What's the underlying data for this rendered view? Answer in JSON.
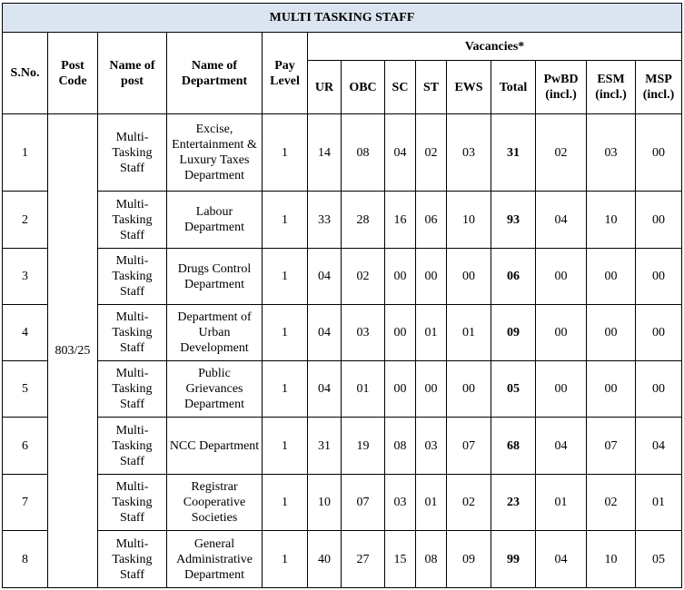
{
  "title": "MULTI TASKING STAFF",
  "headers": {
    "sno": "S.No.",
    "post_code": "Post Code",
    "post": "Name of post",
    "department": "Name of Department",
    "pay_level": "Pay Level",
    "vacancies": "Vacancies*",
    "sub": [
      "UR",
      "OBC",
      "SC",
      "ST",
      "EWS",
      "Total",
      "PwBD (incl.)",
      "ESM (incl.)",
      "MSP (incl.)"
    ]
  },
  "post_code": "803/25",
  "rows": [
    {
      "sno": "1",
      "post": "Multi-Tasking Staff",
      "department": "Excise, Entertainment & Luxury Taxes Department",
      "pay_level": "1",
      "vacancies": [
        "14",
        "08",
        "04",
        "02",
        "03",
        "31",
        "02",
        "03",
        "00"
      ]
    },
    {
      "sno": "2",
      "post": "Multi-Tasking Staff",
      "department": "Labour Department",
      "pay_level": "1",
      "vacancies": [
        "33",
        "28",
        "16",
        "06",
        "10",
        "93",
        "04",
        "10",
        "00"
      ]
    },
    {
      "sno": "3",
      "post": "Multi-Tasking Staff",
      "department": "Drugs Control Department",
      "pay_level": "1",
      "vacancies": [
        "04",
        "02",
        "00",
        "00",
        "00",
        "06",
        "00",
        "00",
        "00"
      ]
    },
    {
      "sno": "4",
      "post": "Multi-Tasking Staff",
      "department": "Department of Urban Development",
      "pay_level": "1",
      "vacancies": [
        "04",
        "03",
        "00",
        "01",
        "01",
        "09",
        "00",
        "00",
        "00"
      ]
    },
    {
      "sno": "5",
      "post": "Multi-Tasking Staff",
      "department": "Public Grievances Department",
      "pay_level": "1",
      "vacancies": [
        "04",
        "01",
        "00",
        "00",
        "00",
        "05",
        "00",
        "00",
        "00"
      ]
    },
    {
      "sno": "6",
      "post": "Multi-Tasking Staff",
      "department": "NCC Department",
      "pay_level": "1",
      "vacancies": [
        "31",
        "19",
        "08",
        "03",
        "07",
        "68",
        "04",
        "07",
        "04"
      ]
    },
    {
      "sno": "7",
      "post": "Multi-Tasking Staff",
      "department": "Registrar Cooperative Societies",
      "pay_level": "1",
      "vacancies": [
        "10",
        "07",
        "03",
        "01",
        "02",
        "23",
        "01",
        "02",
        "01"
      ]
    },
    {
      "sno": "8",
      "post": "Multi-Tasking Staff",
      "department": "General Administrative Department",
      "pay_level": "1",
      "vacancies": [
        "40",
        "27",
        "15",
        "08",
        "09",
        "99",
        "04",
        "10",
        "05"
      ]
    }
  ]
}
